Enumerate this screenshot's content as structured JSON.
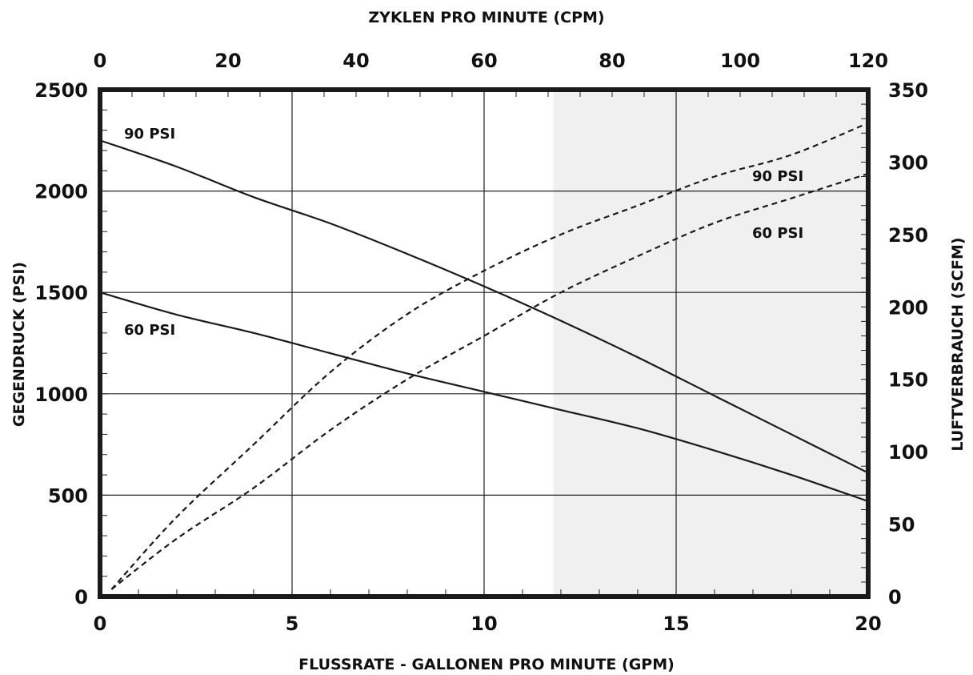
{
  "chart_data": {
    "type": "line",
    "title": "",
    "xlabel": "FLUSSRATE - GALLONEN PRO MINUTE (GPM)",
    "ylabel": "GEGENDRUCK (PSI)",
    "y2label": "LUFTVERBRAUCH (SCFM)",
    "x2label": "ZYKLEN PRO MINUTE (CPM)",
    "xlim": [
      0,
      20
    ],
    "ylim": [
      0,
      2500
    ],
    "y2lim": [
      0,
      350
    ],
    "x2lim": [
      0,
      120
    ],
    "x_ticks": [
      "0",
      "5",
      "10",
      "15",
      "20"
    ],
    "y_ticks": [
      "0",
      "500",
      "1000",
      "1500",
      "2000",
      "2500"
    ],
    "y2_ticks": [
      "0",
      "50",
      "100",
      "150",
      "200",
      "250",
      "300",
      "350"
    ],
    "x2_ticks": [
      "0",
      "20",
      "40",
      "60",
      "80",
      "100",
      "120"
    ],
    "grid": true,
    "shaded_region": {
      "x_start": 11.8,
      "x_end": 20,
      "color": "#f0f0f0"
    },
    "series": [
      {
        "name": "90 PSI",
        "axis": "left",
        "style": "solid",
        "points": [
          [
            0,
            2250
          ],
          [
            2,
            2120
          ],
          [
            4,
            1970
          ],
          [
            6,
            1840
          ],
          [
            8,
            1690
          ],
          [
            10,
            1530
          ],
          [
            12,
            1360
          ],
          [
            14,
            1180
          ],
          [
            16,
            990
          ],
          [
            18,
            800
          ],
          [
            20,
            610
          ]
        ]
      },
      {
        "name": "60 PSI",
        "axis": "left",
        "style": "solid",
        "points": [
          [
            0,
            1500
          ],
          [
            2,
            1390
          ],
          [
            4,
            1300
          ],
          [
            6,
            1200
          ],
          [
            8,
            1100
          ],
          [
            10,
            1010
          ],
          [
            12,
            920
          ],
          [
            14,
            830
          ],
          [
            16,
            720
          ],
          [
            18,
            600
          ],
          [
            20,
            470
          ]
        ]
      },
      {
        "name": "90 PSI",
        "axis": "right",
        "style": "dashed",
        "points": [
          [
            0.3,
            5
          ],
          [
            2,
            55
          ],
          [
            4,
            105
          ],
          [
            6,
            155
          ],
          [
            8,
            195
          ],
          [
            10,
            225
          ],
          [
            12,
            250
          ],
          [
            14,
            270
          ],
          [
            16,
            290
          ],
          [
            18,
            305
          ],
          [
            20,
            327
          ]
        ]
      },
      {
        "name": "60 PSI",
        "axis": "right",
        "style": "dashed",
        "points": [
          [
            0.3,
            5
          ],
          [
            2,
            40
          ],
          [
            4,
            75
          ],
          [
            6,
            115
          ],
          [
            8,
            150
          ],
          [
            10,
            180
          ],
          [
            12,
            210
          ],
          [
            14,
            235
          ],
          [
            16,
            258
          ],
          [
            18,
            275
          ],
          [
            20,
            292
          ]
        ]
      }
    ],
    "labels": {
      "solid_90": "90 PSI",
      "solid_60": "60 PSI",
      "dashed_90": "90 PSI",
      "dashed_60": "60 PSI"
    }
  }
}
